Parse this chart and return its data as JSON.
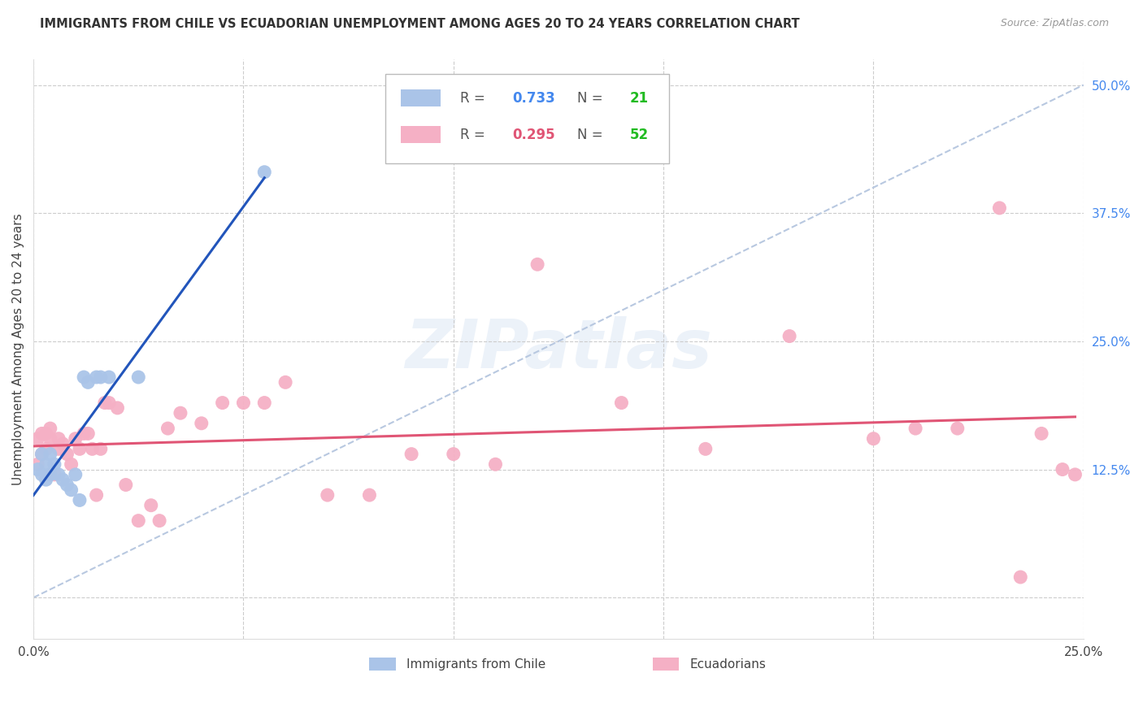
{
  "title": "IMMIGRANTS FROM CHILE VS ECUADORIAN UNEMPLOYMENT AMONG AGES 20 TO 24 YEARS CORRELATION CHART",
  "source": "Source: ZipAtlas.com",
  "ylabel": "Unemployment Among Ages 20 to 24 years",
  "xlim": [
    0.0,
    0.25
  ],
  "ylim": [
    -0.04,
    0.525
  ],
  "blue_color": "#aac4e8",
  "pink_color": "#f5b0c5",
  "blue_line_color": "#2255bb",
  "pink_line_color": "#e05575",
  "ref_line_color": "#b8c8e0",
  "green_color": "#22bb22",
  "legend_r_label_color": "#555555",
  "legend_n_label_color": "#555555",
  "blue_r_val_color": "#4488ee",
  "pink_r_val_color": "#e05575",
  "watermark_text": "ZIPatlas",
  "blue_r": "0.733",
  "blue_n": "21",
  "pink_r": "0.295",
  "pink_n": "52",
  "blue_x": [
    0.001,
    0.002,
    0.002,
    0.003,
    0.003,
    0.004,
    0.004,
    0.005,
    0.006,
    0.007,
    0.008,
    0.009,
    0.01,
    0.011,
    0.012,
    0.013,
    0.015,
    0.016,
    0.018,
    0.025,
    0.055
  ],
  "blue_y": [
    0.125,
    0.12,
    0.14,
    0.115,
    0.13,
    0.12,
    0.14,
    0.13,
    0.12,
    0.115,
    0.11,
    0.105,
    0.12,
    0.095,
    0.215,
    0.21,
    0.215,
    0.215,
    0.215,
    0.215,
    0.415
  ],
  "pink_x": [
    0.001,
    0.001,
    0.002,
    0.002,
    0.003,
    0.003,
    0.004,
    0.004,
    0.005,
    0.006,
    0.006,
    0.007,
    0.008,
    0.009,
    0.01,
    0.011,
    0.012,
    0.013,
    0.014,
    0.015,
    0.016,
    0.017,
    0.018,
    0.02,
    0.022,
    0.025,
    0.028,
    0.03,
    0.032,
    0.035,
    0.04,
    0.045,
    0.05,
    0.055,
    0.06,
    0.07,
    0.08,
    0.09,
    0.1,
    0.11,
    0.12,
    0.14,
    0.16,
    0.18,
    0.2,
    0.21,
    0.22,
    0.23,
    0.235,
    0.24,
    0.245,
    0.248
  ],
  "pink_y": [
    0.13,
    0.155,
    0.14,
    0.16,
    0.145,
    0.16,
    0.155,
    0.165,
    0.12,
    0.145,
    0.155,
    0.15,
    0.14,
    0.13,
    0.155,
    0.145,
    0.16,
    0.16,
    0.145,
    0.1,
    0.145,
    0.19,
    0.19,
    0.185,
    0.11,
    0.075,
    0.09,
    0.075,
    0.165,
    0.18,
    0.17,
    0.19,
    0.19,
    0.19,
    0.21,
    0.1,
    0.1,
    0.14,
    0.14,
    0.13,
    0.325,
    0.19,
    0.145,
    0.255,
    0.155,
    0.165,
    0.165,
    0.38,
    0.02,
    0.16,
    0.125,
    0.12
  ]
}
